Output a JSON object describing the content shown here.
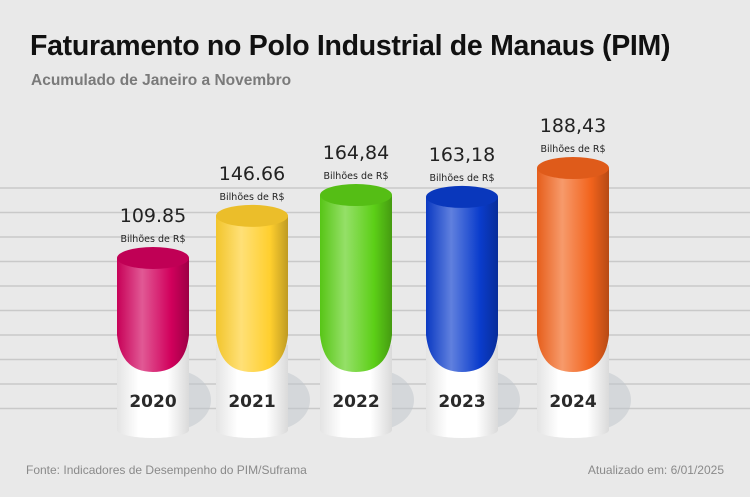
{
  "chart_data": {
    "type": "bar",
    "style": "3d-cylinder",
    "title": "Faturamento no Polo Industrial de Manaus (PIM)",
    "subtitle": "Acumulado de Janeiro a Novembro",
    "categories": [
      "2020",
      "2021",
      "2022",
      "2023",
      "2024"
    ],
    "values": [
      109.85,
      146.66,
      164.84,
      163.18,
      188.43
    ],
    "value_labels": [
      "109.85",
      "146.66",
      "164,84",
      "163,18",
      "188,43"
    ],
    "unit_label": "Bilhões de R$",
    "colors": [
      "#d1005c",
      "#ffcf2e",
      "#5ccf17",
      "#0a3ccc",
      "#f2631c"
    ],
    "grid": true,
    "legend": "none"
  },
  "footer": {
    "source": "Fonte: Indicadores de Desempenho do PIM/Suframa",
    "updated": "Atualizado em: 6/01/2025"
  }
}
